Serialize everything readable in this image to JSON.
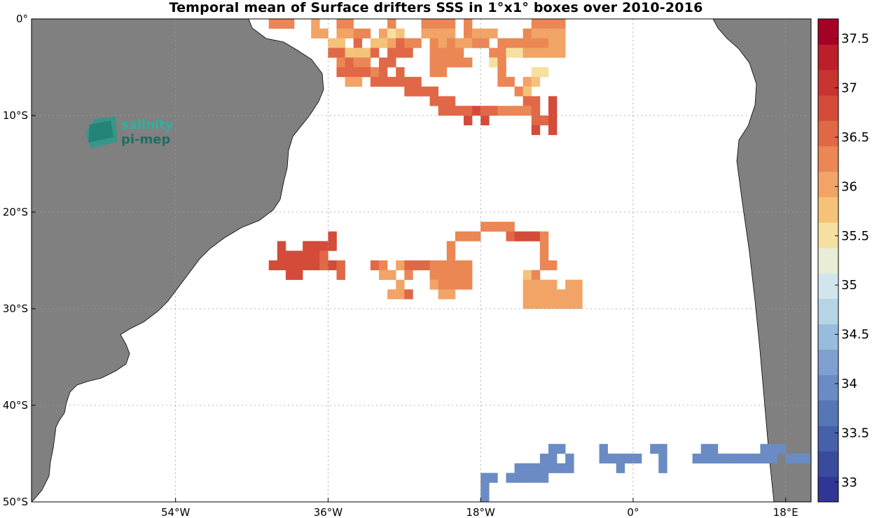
{
  "title": "Temporal mean of Surface drifters SSS in 1°x1° boxes over 2010-2016",
  "logo": {
    "line1": "salinity",
    "line2": "pi-mep"
  },
  "map": {
    "lon_range": [
      -71,
      21
    ],
    "lat_range": [
      -50,
      0
    ],
    "lon_ticks": [
      {
        "value": -54,
        "label": "54°W"
      },
      {
        "value": -36,
        "label": "36°W"
      },
      {
        "value": -18,
        "label": "18°W"
      },
      {
        "value": 0,
        "label": "0°"
      },
      {
        "value": 18,
        "label": "18°E"
      }
    ],
    "lat_ticks": [
      {
        "value": 0,
        "label": "0°"
      },
      {
        "value": -10,
        "label": "10°S"
      },
      {
        "value": -20,
        "label": "20°S"
      },
      {
        "value": -30,
        "label": "30°S"
      },
      {
        "value": -40,
        "label": "40°S"
      },
      {
        "value": -50,
        "label": "50°S"
      }
    ],
    "land_color": "#808080",
    "grid": true
  },
  "colorbar": {
    "min": 32.8,
    "max": 37.7,
    "ticks": [
      "33",
      "33.5",
      "34",
      "34.5",
      "35",
      "35.5",
      "36",
      "36.5",
      "37",
      "37.5"
    ],
    "colors": [
      "#313695",
      "#3a4b9e",
      "#4661aa",
      "#5577b6",
      "#6a8bc3",
      "#7fa0cf",
      "#98bcdb",
      "#b5d5e7",
      "#d0e6ec",
      "#e9ecd6",
      "#f6e0a0",
      "#f5c27a",
      "#f1a466",
      "#eb8655",
      "#e06846",
      "#d44b3a",
      "#c8342f",
      "#bc1f2a",
      "#a50026"
    ]
  },
  "chart_data": {
    "type": "heatmap",
    "variable": "SSS",
    "cells": [
      [
        -43,
        -1,
        36.3
      ],
      [
        -42,
        -1,
        36.3
      ],
      [
        -41,
        -1,
        36.3
      ],
      [
        -38,
        -1,
        36.0
      ],
      [
        -35,
        -1,
        36.3
      ],
      [
        -34,
        -1,
        36.3
      ],
      [
        -29,
        -1,
        36.3
      ],
      [
        -25,
        -1,
        36.3
      ],
      [
        -24,
        -1,
        36.3
      ],
      [
        -23,
        -1,
        36.3
      ],
      [
        -22,
        -1,
        36.3
      ],
      [
        -20,
        -1,
        36.3
      ],
      [
        -12,
        -1,
        36.3
      ],
      [
        -11,
        -1,
        36.3
      ],
      [
        -10,
        -1,
        36.3
      ],
      [
        -9,
        -1,
        36.3
      ],
      [
        -38,
        -2,
        36.0
      ],
      [
        -37,
        -2,
        36.0
      ],
      [
        -35,
        -2,
        36.0
      ],
      [
        -34,
        -2,
        36.0
      ],
      [
        -33,
        -2,
        36.3
      ],
      [
        -32,
        -2,
        36.3
      ],
      [
        -30,
        -2,
        36.0
      ],
      [
        -29,
        -2,
        35.5
      ],
      [
        -28,
        -2,
        35.8
      ],
      [
        -25,
        -2,
        36.0
      ],
      [
        -24,
        -2,
        36.0
      ],
      [
        -23,
        -2,
        36.0
      ],
      [
        -22,
        -2,
        36.0
      ],
      [
        -20,
        -2,
        36.3
      ],
      [
        -19,
        -2,
        36.0
      ],
      [
        -18,
        -2,
        36.0
      ],
      [
        -17,
        -2,
        36.0
      ],
      [
        -13,
        -2,
        36.3
      ],
      [
        -12,
        -2,
        36.0
      ],
      [
        -11,
        -2,
        36.0
      ],
      [
        -10,
        -2,
        36.0
      ],
      [
        -9,
        -2,
        36.0
      ],
      [
        -36,
        -3,
        35.8
      ],
      [
        -35,
        -3,
        35.8
      ],
      [
        -33,
        -3,
        36.6
      ],
      [
        -31,
        -3,
        35.8
      ],
      [
        -30,
        -3,
        35.8
      ],
      [
        -29,
        -3,
        36.0
      ],
      [
        -28,
        -3,
        36.6
      ],
      [
        -27,
        -3,
        36.3
      ],
      [
        -26,
        -3,
        36.3
      ],
      [
        -24,
        -3,
        36.3
      ],
      [
        -23,
        -3,
        36.0
      ],
      [
        -22,
        -3,
        36.3
      ],
      [
        -21,
        -3,
        36.0
      ],
      [
        -20,
        -3,
        36.0
      ],
      [
        -19,
        -3,
        36.3
      ],
      [
        -18,
        -3,
        36.3
      ],
      [
        -16,
        -3,
        36.3
      ],
      [
        -15,
        -3,
        36.3
      ],
      [
        -14,
        -3,
        36.3
      ],
      [
        -13,
        -3,
        36.3
      ],
      [
        -12,
        -3,
        36.3
      ],
      [
        -11,
        -3,
        36.3
      ],
      [
        -10,
        -3,
        36.0
      ],
      [
        -9,
        -3,
        36.0
      ],
      [
        -36,
        -4,
        36.6
      ],
      [
        -35,
        -4,
        36.6
      ],
      [
        -34,
        -4,
        35.8
      ],
      [
        -33,
        -4,
        35.8
      ],
      [
        -32,
        -4,
        35.8
      ],
      [
        -31,
        -4,
        36.6
      ],
      [
        -29,
        -4,
        36.6
      ],
      [
        -28,
        -4,
        36.6
      ],
      [
        -27,
        -4,
        36.6
      ],
      [
        -24,
        -4,
        36.3
      ],
      [
        -23,
        -4,
        36.3
      ],
      [
        -22,
        -4,
        36.3
      ],
      [
        -21,
        -4,
        36.3
      ],
      [
        -17,
        -4,
        36.3
      ],
      [
        -16,
        -4,
        36.3
      ],
      [
        -15,
        -4,
        35.6
      ],
      [
        -14,
        -4,
        35.6
      ],
      [
        -13,
        -4,
        36.0
      ],
      [
        -12,
        -4,
        36.0
      ],
      [
        -11,
        -4,
        36.0
      ],
      [
        -10,
        -4,
        36.0
      ],
      [
        -9,
        -4,
        36.0
      ],
      [
        -35,
        -5,
        36.3
      ],
      [
        -34,
        -5,
        36.6
      ],
      [
        -33,
        -5,
        36.3
      ],
      [
        -32,
        -5,
        36.3
      ],
      [
        -30,
        -5,
        36.6
      ],
      [
        -29,
        -5,
        36.6
      ],
      [
        -24,
        -5,
        36.3
      ],
      [
        -23,
        -5,
        36.3
      ],
      [
        -22,
        -5,
        36.3
      ],
      [
        -21,
        -5,
        36.3
      ],
      [
        -20,
        -5,
        36.3
      ],
      [
        -17,
        -5,
        35.6
      ],
      [
        -16,
        -5,
        36.3
      ],
      [
        -35,
        -6,
        36.6
      ],
      [
        -34,
        -6,
        36.6
      ],
      [
        -33,
        -6,
        36.6
      ],
      [
        -32,
        -6,
        36.6
      ],
      [
        -31,
        -6,
        36.3
      ],
      [
        -30,
        -6,
        36.6
      ],
      [
        -28,
        -6,
        36.6
      ],
      [
        -24,
        -6,
        36.3
      ],
      [
        -23,
        -6,
        36.3
      ],
      [
        -16,
        -6,
        36.3
      ],
      [
        -12,
        -6,
        35.6
      ],
      [
        -11,
        -6,
        35.6
      ],
      [
        -34,
        -7,
        36.0
      ],
      [
        -33,
        -7,
        36.0
      ],
      [
        -31,
        -7,
        36.6
      ],
      [
        -30,
        -7,
        36.6
      ],
      [
        -29,
        -7,
        36.6
      ],
      [
        -28,
        -7,
        36.6
      ],
      [
        -27,
        -7,
        36.6
      ],
      [
        -26,
        -7,
        36.6
      ],
      [
        -16,
        -7,
        36.3
      ],
      [
        -15,
        -7,
        36.3
      ],
      [
        -13,
        -7,
        36.0
      ],
      [
        -12,
        -7,
        35.8
      ],
      [
        -27,
        -8,
        36.6
      ],
      [
        -26,
        -8,
        36.6
      ],
      [
        -25,
        -8,
        36.6
      ],
      [
        -24,
        -8,
        36.6
      ],
      [
        -14,
        -8,
        36.3
      ],
      [
        -13,
        -8,
        35.8
      ],
      [
        -24,
        -9,
        36.6
      ],
      [
        -23,
        -9,
        36.6
      ],
      [
        -22,
        -9,
        36.6
      ],
      [
        -13,
        -9,
        36.6
      ],
      [
        -12,
        -9,
        36.6
      ],
      [
        -10,
        -9,
        36.8
      ],
      [
        -23,
        -10,
        36.6
      ],
      [
        -22,
        -10,
        36.6
      ],
      [
        -21,
        -10,
        36.6
      ],
      [
        -20,
        -10,
        36.6
      ],
      [
        -19,
        -10,
        36.8
      ],
      [
        -18,
        -10,
        36.6
      ],
      [
        -17,
        -10,
        36.6
      ],
      [
        -16,
        -10,
        36.3
      ],
      [
        -15,
        -10,
        36.3
      ],
      [
        -14,
        -10,
        36.3
      ],
      [
        -13,
        -10,
        36.3
      ],
      [
        -12,
        -10,
        36.6
      ],
      [
        -10,
        -10,
        36.8
      ],
      [
        -20,
        -11,
        36.8
      ],
      [
        -18,
        -11,
        36.8
      ],
      [
        -12,
        -11,
        36.6
      ],
      [
        -11,
        -11,
        36.6
      ],
      [
        -10,
        -11,
        36.8
      ],
      [
        -12,
        -12,
        36.8
      ],
      [
        -10,
        -12,
        36.8
      ],
      [
        -18,
        -22,
        36.3
      ],
      [
        -17,
        -22,
        36.3
      ],
      [
        -16,
        -22,
        36.3
      ],
      [
        -15,
        -22,
        36.3
      ],
      [
        -21,
        -23,
        36.3
      ],
      [
        -20,
        -23,
        36.3
      ],
      [
        -19,
        -23,
        36.3
      ],
      [
        -15,
        -23,
        36.6
      ],
      [
        -14,
        -23,
        36.8
      ],
      [
        -13,
        -23,
        36.8
      ],
      [
        -12,
        -23,
        36.8
      ],
      [
        -11,
        -23,
        36.3
      ],
      [
        -36,
        -23,
        36.8
      ],
      [
        -42,
        -24,
        36.8
      ],
      [
        -39,
        -24,
        36.8
      ],
      [
        -38,
        -24,
        36.8
      ],
      [
        -37,
        -24,
        36.8
      ],
      [
        -36,
        -24,
        36.8
      ],
      [
        -22,
        -24,
        36.3
      ],
      [
        -11,
        -24,
        36.3
      ],
      [
        -42,
        -25,
        36.8
      ],
      [
        -41,
        -25,
        36.8
      ],
      [
        -40,
        -25,
        36.8
      ],
      [
        -39,
        -25,
        36.8
      ],
      [
        -38,
        -25,
        36.8
      ],
      [
        -37,
        -25,
        36.6
      ],
      [
        -22,
        -25,
        36.3
      ],
      [
        -11,
        -25,
        36.3
      ],
      [
        -43,
        -26,
        36.8
      ],
      [
        -42,
        -26,
        36.8
      ],
      [
        -41,
        -26,
        36.9
      ],
      [
        -40,
        -26,
        36.9
      ],
      [
        -39,
        -26,
        36.8
      ],
      [
        -38,
        -26,
        36.8
      ],
      [
        -37,
        -26,
        36.6
      ],
      [
        -36,
        -26,
        36.8
      ],
      [
        -35,
        -26,
        36.6
      ],
      [
        -31,
        -26,
        36.6
      ],
      [
        -30,
        -26,
        36.3
      ],
      [
        -28,
        -26,
        36.0
      ],
      [
        -27,
        -26,
        36.6
      ],
      [
        -26,
        -26,
        36.6
      ],
      [
        -25,
        -26,
        36.6
      ],
      [
        -24,
        -26,
        36.3
      ],
      [
        -23,
        -26,
        36.3
      ],
      [
        -22,
        -26,
        36.3
      ],
      [
        -21,
        -26,
        36.3
      ],
      [
        -20,
        -26,
        36.3
      ],
      [
        -11,
        -26,
        36.3
      ],
      [
        -10,
        -26,
        36.3
      ],
      [
        -41,
        -27,
        36.8
      ],
      [
        -40,
        -27,
        36.8
      ],
      [
        -35,
        -27,
        36.6
      ],
      [
        -30,
        -27,
        36.0
      ],
      [
        -29,
        -27,
        36.0
      ],
      [
        -27,
        -27,
        36.3
      ],
      [
        -24,
        -27,
        36.3
      ],
      [
        -23,
        -27,
        36.3
      ],
      [
        -22,
        -27,
        36.3
      ],
      [
        -21,
        -27,
        36.3
      ],
      [
        -20,
        -27,
        36.3
      ],
      [
        -13,
        -27,
        35.8
      ],
      [
        -12,
        -27,
        36.3
      ],
      [
        -28,
        -28,
        36.0
      ],
      [
        -24,
        -28,
        36.0
      ],
      [
        -23,
        -28,
        36.3
      ],
      [
        -22,
        -28,
        36.3
      ],
      [
        -21,
        -28,
        36.3
      ],
      [
        -20,
        -28,
        36.3
      ],
      [
        -13,
        -28,
        36.0
      ],
      [
        -12,
        -28,
        36.0
      ],
      [
        -11,
        -28,
        36.0
      ],
      [
        -10,
        -28,
        36.0
      ],
      [
        -8,
        -28,
        36.0
      ],
      [
        -7,
        -28,
        36.0
      ],
      [
        -29,
        -29,
        36.0
      ],
      [
        -28,
        -29,
        36.0
      ],
      [
        -27,
        -29,
        36.6
      ],
      [
        -23,
        -29,
        36.0
      ],
      [
        -22,
        -29,
        36.0
      ],
      [
        -13,
        -29,
        36.0
      ],
      [
        -12,
        -29,
        36.0
      ],
      [
        -11,
        -29,
        36.0
      ],
      [
        -10,
        -29,
        36.0
      ],
      [
        -9,
        -29,
        36.0
      ],
      [
        -8,
        -29,
        36.0
      ],
      [
        -7,
        -29,
        36.0
      ],
      [
        -13,
        -30,
        36.0
      ],
      [
        -12,
        -30,
        36.0
      ],
      [
        -11,
        -30,
        36.0
      ],
      [
        -10,
        -30,
        36.0
      ],
      [
        -9,
        -30,
        36.0
      ],
      [
        -8,
        -30,
        36.0
      ],
      [
        -7,
        -30,
        36.0
      ],
      [
        -10,
        -45,
        33.9
      ],
      [
        -9,
        -45,
        33.9
      ],
      [
        -4,
        -45,
        33.9
      ],
      [
        2,
        -45,
        33.9
      ],
      [
        3,
        -45,
        33.9
      ],
      [
        8,
        -45,
        33.9
      ],
      [
        9,
        -45,
        33.9
      ],
      [
        15,
        -45,
        33.9
      ],
      [
        16,
        -45,
        33.9
      ],
      [
        17,
        -45,
        33.9
      ],
      [
        21,
        -45,
        33.9
      ],
      [
        -11,
        -46,
        33.9
      ],
      [
        -10,
        -46,
        33.9
      ],
      [
        -8,
        -46,
        33.9
      ],
      [
        -4,
        -46,
        33.9
      ],
      [
        -3,
        -46,
        33.9
      ],
      [
        -2,
        -46,
        33.9
      ],
      [
        -1,
        -46,
        33.9
      ],
      [
        0,
        -46,
        33.9
      ],
      [
        3,
        -46,
        33.9
      ],
      [
        7,
        -46,
        33.9
      ],
      [
        8,
        -46,
        33.9
      ],
      [
        9,
        -46,
        33.9
      ],
      [
        10,
        -46,
        33.9
      ],
      [
        11,
        -46,
        33.9
      ],
      [
        12,
        -46,
        33.9
      ],
      [
        13,
        -46,
        33.9
      ],
      [
        14,
        -46,
        33.9
      ],
      [
        15,
        -46,
        33.9
      ],
      [
        16,
        -46,
        33.9
      ],
      [
        18,
        -46,
        33.9
      ],
      [
        19,
        -46,
        33.9
      ],
      [
        20,
        -46,
        33.9
      ],
      [
        21,
        -46,
        33.9
      ],
      [
        -14,
        -47,
        33.9
      ],
      [
        -13,
        -47,
        33.9
      ],
      [
        -12,
        -47,
        33.9
      ],
      [
        -11,
        -47,
        33.9
      ],
      [
        -10,
        -47,
        33.9
      ],
      [
        -9,
        -47,
        33.9
      ],
      [
        -8,
        -47,
        33.9
      ],
      [
        -2,
        -47,
        33.9
      ],
      [
        3,
        -47,
        33.9
      ],
      [
        -15,
        -48,
        33.9
      ],
      [
        -14,
        -48,
        33.9
      ],
      [
        -13,
        -48,
        33.9
      ],
      [
        -12,
        -48,
        33.9
      ],
      [
        -11,
        -48,
        33.9
      ],
      [
        -18,
        -48,
        33.9
      ],
      [
        -17,
        -48,
        33.9
      ],
      [
        -18,
        -49,
        33.9
      ],
      [
        -18,
        -50,
        33.9
      ]
    ]
  }
}
